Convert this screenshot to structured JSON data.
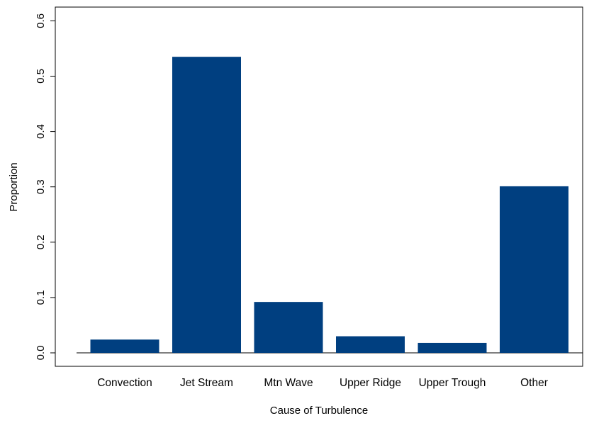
{
  "chart_data": {
    "type": "bar",
    "title": "",
    "xlabel": "Cause of Turbulence",
    "ylabel": "Proportion",
    "categories": [
      "Convection",
      "Jet Stream",
      "Mtn Wave",
      "Upper Ridge",
      "Upper Trough",
      "Other"
    ],
    "values": [
      0.024,
      0.535,
      0.092,
      0.03,
      0.018,
      0.301
    ],
    "ylim": [
      0,
      0.6
    ],
    "yticks": [
      "0.0",
      "0.1",
      "0.2",
      "0.3",
      "0.4",
      "0.5",
      "0.6"
    ],
    "grid": false,
    "legend": "none",
    "colors": {
      "bar": "#003f80",
      "axis": "#000000"
    }
  }
}
